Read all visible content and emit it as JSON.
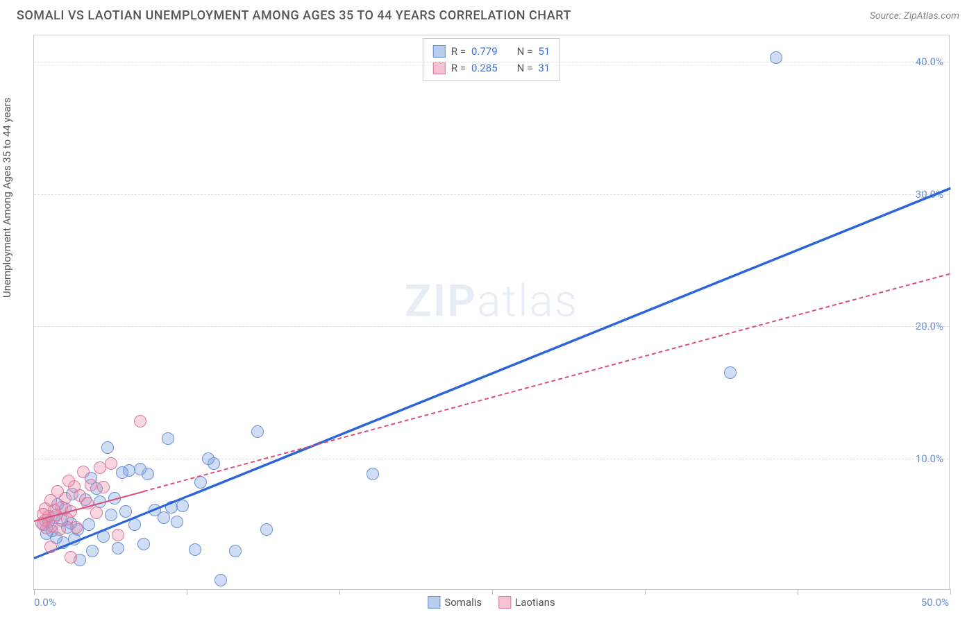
{
  "header": {
    "title": "SOMALI VS LAOTIAN UNEMPLOYMENT AMONG AGES 35 TO 44 YEARS CORRELATION CHART",
    "source_prefix": "Source: ",
    "source_name": "ZipAtlas.com"
  },
  "chart": {
    "type": "scatter",
    "y_axis_label": "Unemployment Among Ages 35 to 44 years",
    "xlim": [
      0,
      50
    ],
    "ylim": [
      0,
      42
    ],
    "x_tick_positions": [
      0,
      8.33,
      16.67,
      25,
      33.33,
      41.67,
      50
    ],
    "x_label_start": "0.0%",
    "x_label_end": "50.0%",
    "y_ticks": [
      {
        "v": 10,
        "label": "10.0%"
      },
      {
        "v": 20,
        "label": "20.0%"
      },
      {
        "v": 30,
        "label": "30.0%"
      },
      {
        "v": 40,
        "label": "40.0%"
      }
    ],
    "background_color": "#ffffff",
    "grid_color": "#dddddd",
    "point_radius": 9,
    "point_border_width": 1,
    "series": [
      {
        "name": "Somalis",
        "fill": "rgba(120,160,225,0.35)",
        "stroke": "#6b8fd4",
        "swatch_fill": "#b9cdef",
        "swatch_border": "#6b8fd4",
        "R": "0.779",
        "N": "51",
        "trend": {
          "x1": 0,
          "y1": 2.5,
          "x2": 50,
          "y2": 30.5,
          "color": "#2b65d9",
          "width": 3,
          "dash": false,
          "solid_until_x": 8.5
        },
        "points": [
          [
            40.5,
            40.3
          ],
          [
            38.0,
            16.5
          ],
          [
            18.5,
            8.8
          ],
          [
            12.7,
            4.6
          ],
          [
            12.2,
            12.0
          ],
          [
            11.0,
            3.0
          ],
          [
            10.2,
            0.8
          ],
          [
            9.8,
            9.6
          ],
          [
            9.5,
            10.0
          ],
          [
            9.1,
            8.2
          ],
          [
            8.8,
            3.1
          ],
          [
            8.1,
            6.4
          ],
          [
            7.8,
            5.2
          ],
          [
            7.5,
            6.3
          ],
          [
            7.3,
            11.5
          ],
          [
            7.1,
            5.5
          ],
          [
            6.6,
            6.1
          ],
          [
            6.2,
            8.8
          ],
          [
            6.0,
            3.5
          ],
          [
            5.8,
            9.2
          ],
          [
            5.5,
            5.0
          ],
          [
            5.2,
            9.1
          ],
          [
            5.0,
            6.0
          ],
          [
            4.8,
            8.9
          ],
          [
            4.6,
            3.2
          ],
          [
            4.4,
            7.0
          ],
          [
            4.2,
            5.7
          ],
          [
            4.0,
            10.8
          ],
          [
            3.8,
            4.1
          ],
          [
            3.6,
            6.7
          ],
          [
            3.4,
            7.7
          ],
          [
            3.2,
            3.0
          ],
          [
            3.1,
            8.5
          ],
          [
            3.0,
            5.0
          ],
          [
            2.8,
            6.9
          ],
          [
            2.5,
            2.3
          ],
          [
            2.4,
            4.6
          ],
          [
            2.2,
            3.9
          ],
          [
            2.1,
            7.3
          ],
          [
            2.0,
            5.1
          ],
          [
            1.8,
            4.8
          ],
          [
            1.7,
            6.2
          ],
          [
            1.6,
            3.6
          ],
          [
            1.5,
            5.3
          ],
          [
            1.3,
            6.5
          ],
          [
            1.2,
            4.0
          ],
          [
            1.1,
            5.5
          ],
          [
            1.0,
            4.5
          ],
          [
            0.8,
            5.2
          ],
          [
            0.7,
            4.3
          ],
          [
            0.5,
            5.0
          ]
        ]
      },
      {
        "name": "Laotians",
        "fill": "rgba(235,140,165,0.35)",
        "stroke": "#d977a0",
        "swatch_fill": "#f5c3d4",
        "swatch_border": "#d977a0",
        "R": "0.285",
        "N": "31",
        "trend": {
          "x1": 0,
          "y1": 5.3,
          "x2": 50,
          "y2": 24.0,
          "color": "#d94f7a",
          "width": 2,
          "dash": true,
          "solid_until_x": 6.0
        },
        "points": [
          [
            5.8,
            12.8
          ],
          [
            4.6,
            4.2
          ],
          [
            4.2,
            9.6
          ],
          [
            3.8,
            7.8
          ],
          [
            3.6,
            9.3
          ],
          [
            3.4,
            5.9
          ],
          [
            3.1,
            8.0
          ],
          [
            2.9,
            6.6
          ],
          [
            2.7,
            9.0
          ],
          [
            2.5,
            7.2
          ],
          [
            2.3,
            4.8
          ],
          [
            2.2,
            7.9
          ],
          [
            2.0,
            6.0
          ],
          [
            2.0,
            2.5
          ],
          [
            1.9,
            8.3
          ],
          [
            1.8,
            5.4
          ],
          [
            1.7,
            7.0
          ],
          [
            1.5,
            6.3
          ],
          [
            1.4,
            4.6
          ],
          [
            1.3,
            7.5
          ],
          [
            1.2,
            5.7
          ],
          [
            1.1,
            6.1
          ],
          [
            1.0,
            4.9
          ],
          [
            0.9,
            6.8
          ],
          [
            0.9,
            3.3
          ],
          [
            0.8,
            5.6
          ],
          [
            0.7,
            4.7
          ],
          [
            0.6,
            6.2
          ],
          [
            0.6,
            5.3
          ],
          [
            0.5,
            5.8
          ],
          [
            0.4,
            5.1
          ]
        ]
      }
    ],
    "legend_top": {
      "r_label": "R =",
      "n_label": "N ="
    },
    "legend_bottom": [
      {
        "label": "Somalis",
        "series_idx": 0
      },
      {
        "label": "Laotians",
        "series_idx": 1
      }
    ],
    "watermark": {
      "part1": "ZIP",
      "part2": "atlas"
    }
  }
}
